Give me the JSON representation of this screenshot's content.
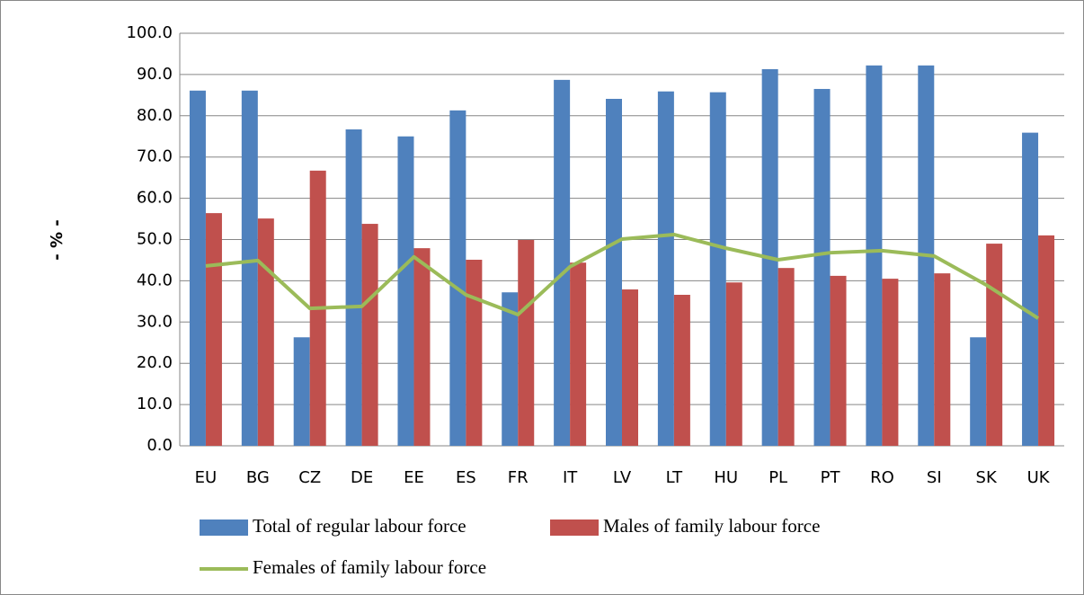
{
  "chart_data": {
    "type": "bar-line",
    "y_label": "- % -",
    "categories": [
      "EU",
      "BG",
      "CZ",
      "DE",
      "EE",
      "ES",
      "FR",
      "IT",
      "LV",
      "LT",
      "HU",
      "PL",
      "PT",
      "RO",
      "SI",
      "SK",
      "UK"
    ],
    "series": [
      {
        "name": "Total of regular labour force",
        "type": "bar",
        "color": "#4f81bd",
        "values": [
          86.1,
          86.1,
          26.3,
          76.7,
          75.0,
          81.3,
          37.2,
          88.7,
          84.1,
          85.9,
          85.7,
          91.3,
          86.5,
          92.2,
          92.2,
          26.3,
          75.9
        ]
      },
      {
        "name": "Males of family labour force",
        "type": "bar",
        "color": "#c0504d",
        "values": [
          56.4,
          55.1,
          66.7,
          53.8,
          47.9,
          45.1,
          49.9,
          44.4,
          37.9,
          36.6,
          39.6,
          43.1,
          41.2,
          40.5,
          41.8,
          49.0,
          51.0
        ]
      },
      {
        "name": "Females of family labour force",
        "type": "line",
        "color": "#9bbb59",
        "values": [
          43.6,
          44.9,
          33.3,
          33.8,
          45.8,
          36.6,
          31.8,
          43.4,
          50.1,
          51.2,
          47.9,
          45.1,
          46.8,
          47.3,
          46.0,
          39.0,
          30.9
        ]
      }
    ],
    "ylim": [
      0,
      100
    ],
    "yticks": [
      {
        "value": 0,
        "label": "0.0"
      },
      {
        "value": 10,
        "label": "10.0"
      },
      {
        "value": 20,
        "label": "20.0"
      },
      {
        "value": 30,
        "label": "30.0"
      },
      {
        "value": 40,
        "label": "40.0"
      },
      {
        "value": 50,
        "label": "50.0"
      },
      {
        "value": 60,
        "label": "60.0"
      },
      {
        "value": 70,
        "label": "70.0"
      },
      {
        "value": 80,
        "label": "80.0"
      },
      {
        "value": 90,
        "label": "90.0"
      },
      {
        "value": 100,
        "label": "100.0"
      }
    ],
    "grid": true
  }
}
